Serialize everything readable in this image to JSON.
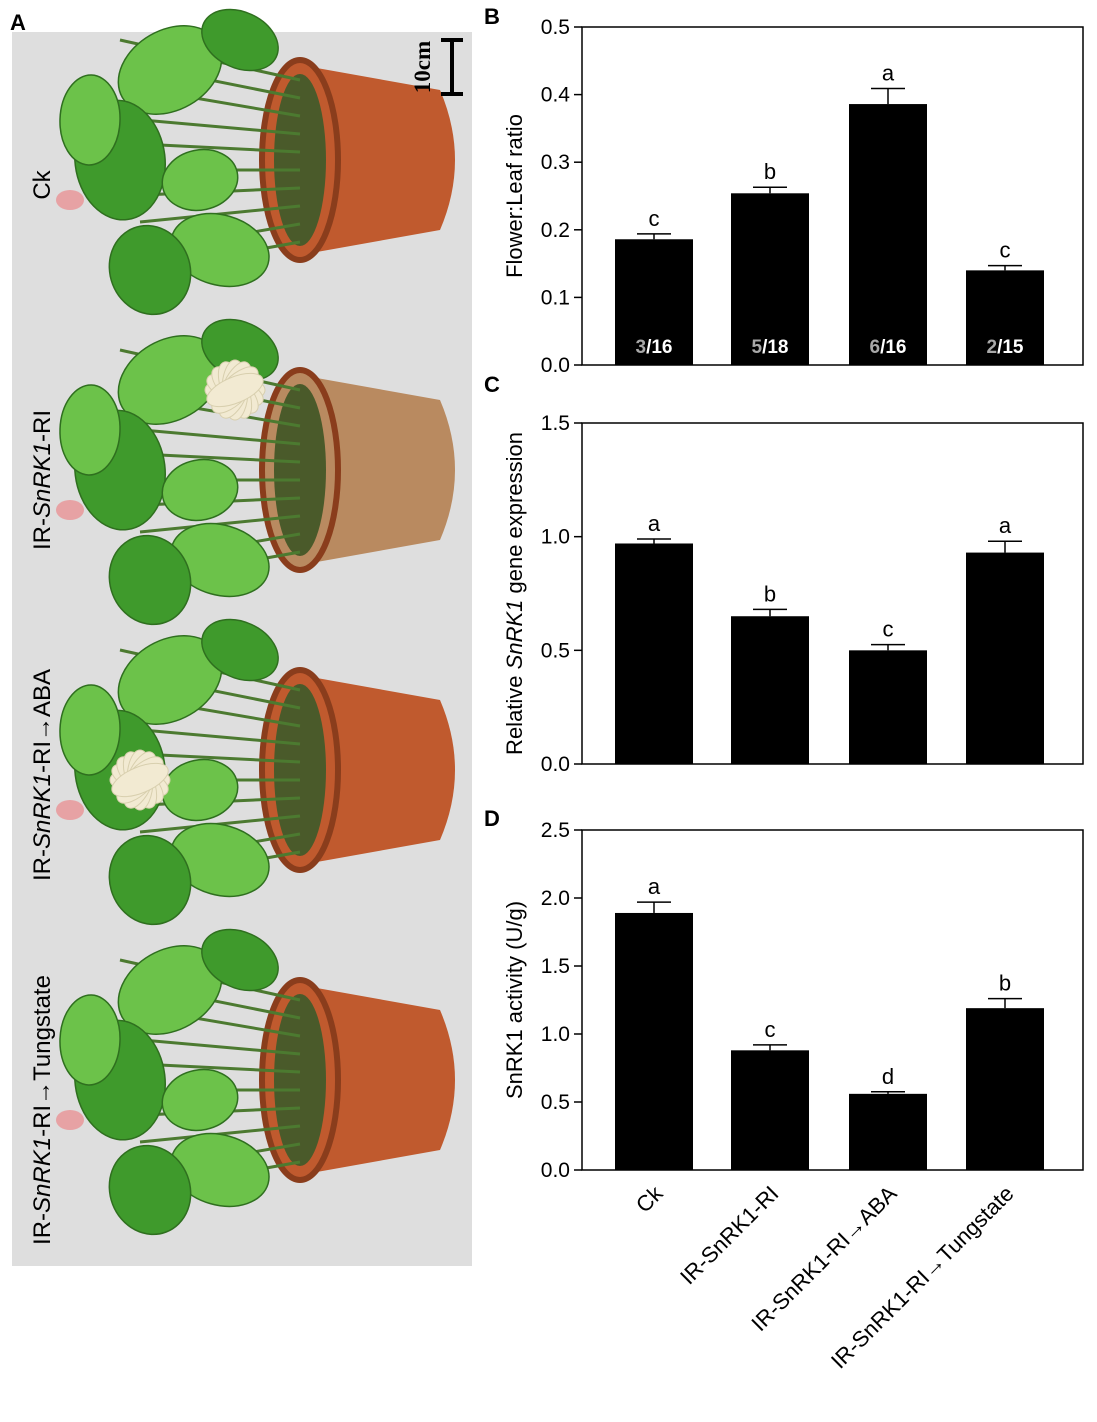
{
  "panel_a": {
    "letter": "A",
    "scale_bar": "10cm",
    "plants": [
      {
        "label_parts": [
          "Ck"
        ],
        "italic": [
          false
        ]
      },
      {
        "label_parts": [
          "IR-",
          "SnRK1",
          "-RI"
        ],
        "italic": [
          false,
          true,
          false
        ]
      },
      {
        "label_parts": [
          "IR-",
          "SnRK1",
          "-RI→ABA"
        ],
        "italic": [
          false,
          true,
          false
        ]
      },
      {
        "label_parts": [
          "IR-",
          "SnRK1",
          "-RI→Tungstate"
        ],
        "italic": [
          false,
          true,
          false
        ]
      }
    ],
    "colors": {
      "background": "#dedede",
      "pot": "#c05a2e",
      "pot_light": "#b98a60",
      "leaf": "#3f9a2c",
      "leaf_light": "#6cc24a",
      "stem": "#4c7a30",
      "flower": "#f2ead2",
      "bud": "#e7a2a4"
    }
  },
  "chart_data": [
    {
      "type": "bar",
      "panel": "B",
      "categories": [
        "Ck",
        "IR-SnRK1-RI",
        "IR-SnRK1-RI→ABA",
        "IR-SnRK1-RI→Tungstate"
      ],
      "values": [
        0.186,
        0.254,
        0.386,
        0.14
      ],
      "errors": [
        0.008,
        0.009,
        0.023,
        0.007
      ],
      "significance": [
        "c",
        "b",
        "a",
        "c"
      ],
      "bar_labels": [
        {
          "num": "3",
          "den": "/16"
        },
        {
          "num": "5",
          "den": "/18"
        },
        {
          "num": "6",
          "den": "/16"
        },
        {
          "num": "2",
          "den": "/15"
        }
      ],
      "ylabel_parts": [
        "Flower:Leaf ratio"
      ],
      "ylabel_italic": [
        false
      ],
      "ylim": [
        0,
        0.5
      ],
      "yticks": [
        "0.0",
        "0.1",
        "0.2",
        "0.3",
        "0.4",
        "0.5"
      ],
      "grid": false,
      "bar_color": "#000000"
    },
    {
      "type": "bar",
      "panel": "C",
      "categories": [
        "Ck",
        "IR-SnRK1-RI",
        "IR-SnRK1-RI→ABA",
        "IR-SnRK1-RI→Tungstate"
      ],
      "values": [
        0.97,
        0.65,
        0.5,
        0.93
      ],
      "errors": [
        0.02,
        0.03,
        0.025,
        0.05
      ],
      "significance": [
        "a",
        "b",
        "c",
        "a"
      ],
      "ylabel_parts": [
        "Relative ",
        "SnRK1",
        " gene expression"
      ],
      "ylabel_italic": [
        false,
        true,
        false
      ],
      "ylim": [
        0,
        1.5
      ],
      "yticks": [
        "0.0",
        "0.5",
        "1.0",
        "1.5"
      ],
      "grid": false,
      "bar_color": "#000000"
    },
    {
      "type": "bar",
      "panel": "D",
      "categories": [
        "Ck",
        "IR-SnRK1-RI",
        "IR-SnRK1-RI→ABA",
        "IR-SnRK1-RI→Tungstate"
      ],
      "values": [
        1.89,
        0.88,
        0.56,
        1.19
      ],
      "errors": [
        0.08,
        0.04,
        0.015,
        0.07
      ],
      "significance": [
        "a",
        "c",
        "d",
        "b"
      ],
      "ylabel_parts": [
        "SnRK1 activity (U/g)"
      ],
      "ylabel_italic": [
        false
      ],
      "ylim": [
        0,
        2.5
      ],
      "yticks": [
        "0.0",
        "0.5",
        "1.0",
        "1.5",
        "2.0",
        "2.5"
      ],
      "grid": false,
      "bar_color": "#000000",
      "xtick_labels": [
        "Ck",
        "IR-SnRK1-RI",
        "IR-SnRK1-RI→ABA",
        "IR-SnRK1-RI→Tungstate"
      ]
    }
  ]
}
